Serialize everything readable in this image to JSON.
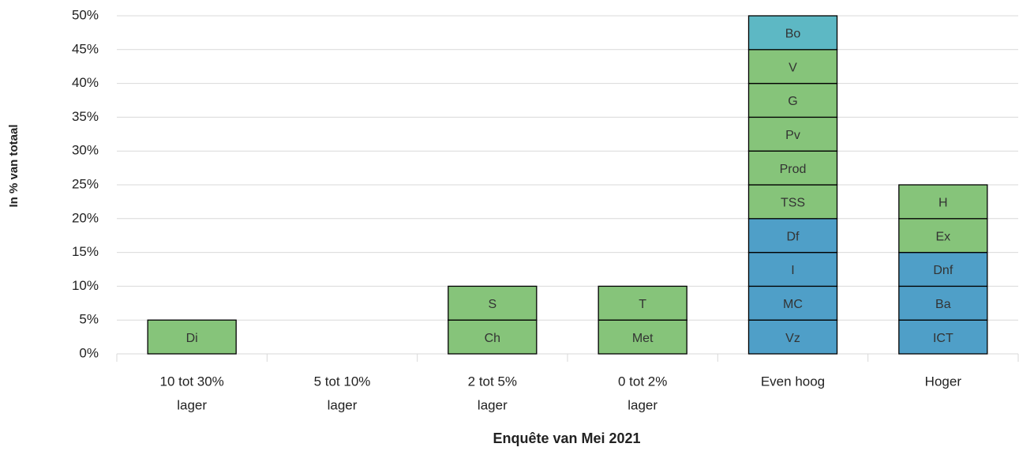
{
  "chart_data": {
    "type": "stacked_bar",
    "x_axis_title": "Enquête van Mei 2021",
    "y_axis_title": "In % van totaal",
    "categories": [
      [
        "10 tot 30%",
        "lager"
      ],
      [
        "5 tot 10%",
        "lager"
      ],
      [
        "2 tot 5%",
        "lager"
      ],
      [
        "0 tot 2%",
        "lager"
      ],
      [
        "Even hoog"
      ],
      [
        "Hoger"
      ]
    ],
    "stacks": [
      [
        {
          "label": "Di",
          "value": 5,
          "color": "#86c47a"
        }
      ],
      [],
      [
        {
          "label": "Ch",
          "value": 5,
          "color": "#86c47a"
        },
        {
          "label": "S",
          "value": 5,
          "color": "#86c47a"
        }
      ],
      [
        {
          "label": "Met",
          "value": 5,
          "color": "#86c47a"
        },
        {
          "label": "T",
          "value": 5,
          "color": "#86c47a"
        }
      ],
      [
        {
          "label": "Vz",
          "value": 5,
          "color": "#4f9fc8"
        },
        {
          "label": "MC",
          "value": 5,
          "color": "#4f9fc8"
        },
        {
          "label": "I",
          "value": 5,
          "color": "#4f9fc8"
        },
        {
          "label": "Df",
          "value": 5,
          "color": "#4f9fc8"
        },
        {
          "label": "TSS",
          "value": 5,
          "color": "#86c47a"
        },
        {
          "label": "Prod",
          "value": 5,
          "color": "#86c47a"
        },
        {
          "label": "Pv",
          "value": 5,
          "color": "#86c47a"
        },
        {
          "label": "G",
          "value": 5,
          "color": "#86c47a"
        },
        {
          "label": "V",
          "value": 5,
          "color": "#86c47a"
        },
        {
          "label": "Bo",
          "value": 5,
          "color": "#5db8c4"
        }
      ],
      [
        {
          "label": "ICT",
          "value": 5,
          "color": "#4f9fc8"
        },
        {
          "label": "Ba",
          "value": 5,
          "color": "#4f9fc8"
        },
        {
          "label": "Dnf",
          "value": 5,
          "color": "#4f9fc8"
        },
        {
          "label": "Ex",
          "value": 5,
          "color": "#86c47a"
        },
        {
          "label": "H",
          "value": 5,
          "color": "#86c47a"
        }
      ]
    ],
    "ylim": [
      0,
      50
    ],
    "yticks": [
      {
        "value": 0,
        "label": "0%"
      },
      {
        "value": 5,
        "label": "5%"
      },
      {
        "value": 10,
        "label": "10%"
      },
      {
        "value": 15,
        "label": "15%"
      },
      {
        "value": 20,
        "label": "20%"
      },
      {
        "value": 25,
        "label": "25%"
      },
      {
        "value": 30,
        "label": "30%"
      },
      {
        "value": 35,
        "label": "35%"
      },
      {
        "value": 40,
        "label": "40%"
      },
      {
        "value": 45,
        "label": "45%"
      },
      {
        "value": 50,
        "label": "50%"
      }
    ],
    "grid": true
  }
}
